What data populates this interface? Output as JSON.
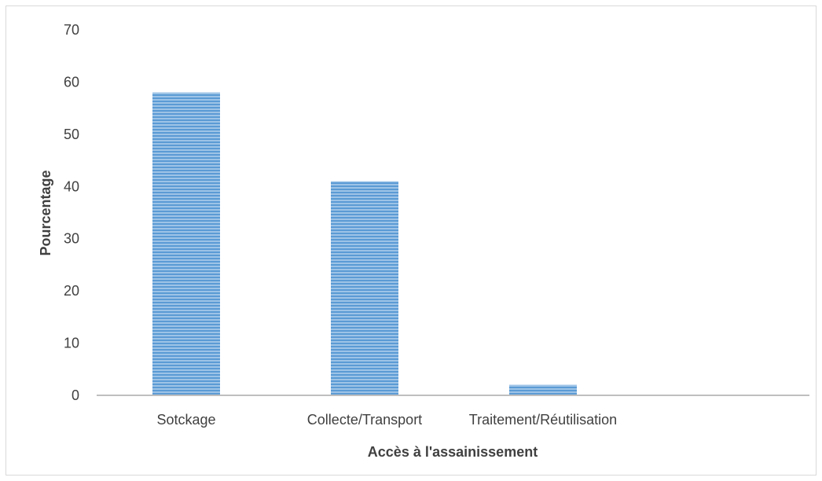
{
  "chart_data": {
    "type": "bar",
    "title": "",
    "xlabel": "Accès à l'assainissement",
    "ylabel": "Pourcentage",
    "categories": [
      "Sotckage",
      "Collecte/Transport",
      "Traitement/Réutilisation"
    ],
    "values": [
      58,
      41,
      2
    ],
    "ylim": [
      0,
      70
    ],
    "yticks": [
      0,
      10,
      20,
      30,
      40,
      50,
      60,
      70
    ],
    "grid": false,
    "legend": "none",
    "bar_color": "#5b9bd5",
    "bar_pattern": "horizontal-stripes",
    "axis_color": "#bfbfbf"
  }
}
